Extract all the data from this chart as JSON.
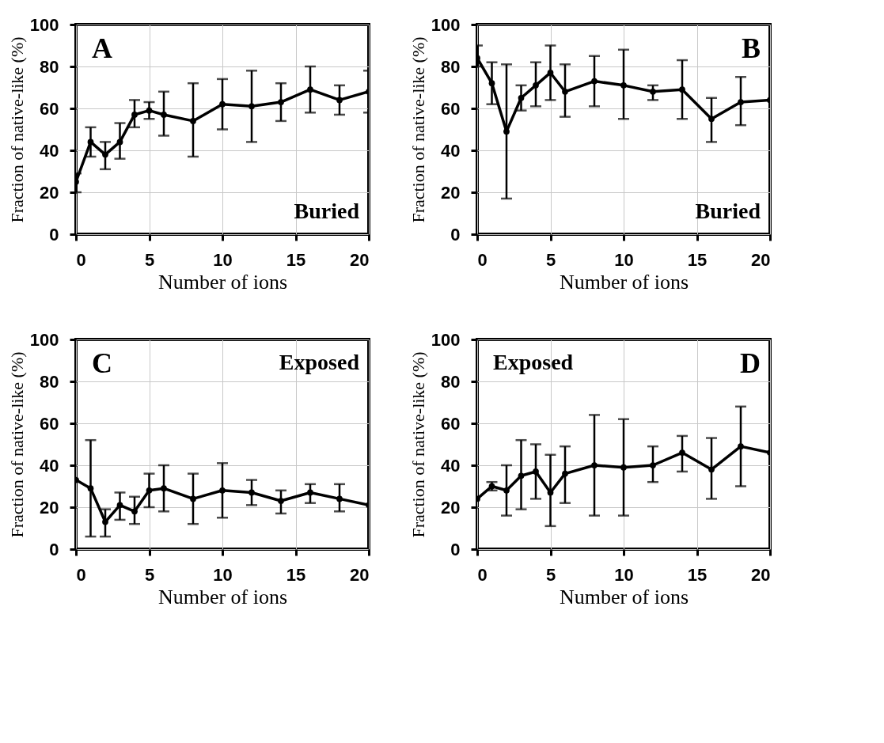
{
  "chart_data": [
    {
      "type": "line",
      "xlabel": "Number of ions",
      "ylabel": "Fraction of native-like (%)",
      "annotations": [
        "A",
        "Buried"
      ],
      "x": [
        0,
        1,
        2,
        3,
        4,
        5,
        6,
        8,
        10,
        12,
        14,
        16,
        18,
        20
      ],
      "xlim": [
        0,
        20
      ],
      "xticks": [
        0,
        5,
        10,
        15,
        20
      ],
      "ylim": [
        0,
        100
      ],
      "yticks": [
        0,
        20,
        40,
        60,
        80,
        100
      ],
      "grid": true,
      "marker": "circle",
      "line_style": "solid",
      "series": [
        {
          "color": "#000000",
          "values": [
            25,
            44,
            38,
            44,
            57,
            59,
            57,
            54,
            62,
            61,
            63,
            69,
            64,
            68
          ],
          "errors": [
            [
              20,
              29
            ],
            [
              37,
              51
            ],
            [
              31,
              44
            ],
            [
              36,
              53
            ],
            [
              51,
              64
            ],
            [
              55,
              63
            ],
            [
              47,
              68
            ],
            [
              37,
              72
            ],
            [
              50,
              74
            ],
            [
              44,
              78
            ],
            [
              54,
              72
            ],
            [
              58,
              80
            ],
            [
              57,
              71
            ],
            [
              58,
              78
            ]
          ]
        }
      ]
    },
    {
      "type": "line",
      "xlabel": "Number of ions",
      "ylabel": "Fraction of native-like (%)",
      "annotations": [
        "B",
        "Buried"
      ],
      "x": [
        0,
        1,
        2,
        3,
        4,
        5,
        6,
        8,
        10,
        12,
        14,
        16,
        18,
        20
      ],
      "xlim": [
        0,
        20
      ],
      "xticks": [
        0,
        5,
        10,
        15,
        20
      ],
      "ylim": [
        0,
        100
      ],
      "yticks": [
        0,
        20,
        40,
        60,
        80,
        100
      ],
      "grid": true,
      "marker": "circle",
      "line_style": "solid",
      "series": [
        {
          "color": "#000000",
          "values": [
            84,
            72,
            49,
            65,
            71,
            77,
            68,
            73,
            71,
            68,
            69,
            55,
            63,
            64
          ],
          "errors": [
            [
              80,
              90
            ],
            [
              62,
              82
            ],
            [
              17,
              81
            ],
            [
              59,
              71
            ],
            [
              61,
              82
            ],
            [
              64,
              90
            ],
            [
              56,
              81
            ],
            [
              61,
              85
            ],
            [
              55,
              88
            ],
            [
              64,
              71
            ],
            [
              55,
              83
            ],
            [
              44,
              65
            ],
            [
              52,
              75
            ],
            null
          ]
        }
      ]
    },
    {
      "type": "line",
      "xlabel": "Number of ions",
      "ylabel": "Fraction of native-like (%)",
      "annotations": [
        "C",
        "Exposed"
      ],
      "x": [
        0,
        1,
        2,
        3,
        4,
        5,
        6,
        8,
        10,
        12,
        14,
        16,
        18,
        20
      ],
      "xlim": [
        0,
        20
      ],
      "xticks": [
        0,
        5,
        10,
        15,
        20
      ],
      "ylim": [
        0,
        100
      ],
      "yticks": [
        0,
        20,
        40,
        60,
        80,
        100
      ],
      "grid": true,
      "marker": "circle",
      "line_style": "solid",
      "series": [
        {
          "color": "#000000",
          "values": [
            33,
            29,
            13,
            21,
            18,
            28,
            29,
            24,
            28,
            27,
            23,
            27,
            24,
            21
          ],
          "errors": [
            null,
            [
              6,
              52
            ],
            [
              6,
              19
            ],
            [
              14,
              27
            ],
            [
              12,
              25
            ],
            [
              20,
              36
            ],
            [
              18,
              40
            ],
            [
              12,
              36
            ],
            [
              15,
              41
            ],
            [
              21,
              33
            ],
            [
              17,
              28
            ],
            [
              22,
              31
            ],
            [
              18,
              31
            ],
            null
          ]
        }
      ]
    },
    {
      "type": "line",
      "xlabel": "Number of ions",
      "ylabel": "Fraction of native-like (%)",
      "annotations": [
        "D",
        "Exposed"
      ],
      "x": [
        0,
        1,
        2,
        3,
        4,
        5,
        6,
        8,
        10,
        12,
        14,
        16,
        18,
        20
      ],
      "xlim": [
        0,
        20
      ],
      "xticks": [
        0,
        5,
        10,
        15,
        20
      ],
      "ylim": [
        0,
        100
      ],
      "yticks": [
        0,
        20,
        40,
        60,
        80,
        100
      ],
      "grid": true,
      "marker": "circle",
      "line_style": "solid",
      "series": [
        {
          "color": "#000000",
          "values": [
            24,
            30,
            28,
            35,
            37,
            27,
            36,
            40,
            39,
            40,
            46,
            38,
            49,
            46
          ],
          "errors": [
            null,
            [
              28,
              32
            ],
            [
              16,
              40
            ],
            [
              19,
              52
            ],
            [
              24,
              50
            ],
            [
              11,
              45
            ],
            [
              22,
              49
            ],
            [
              16,
              64
            ],
            [
              16,
              62
            ],
            [
              32,
              49
            ],
            [
              37,
              54
            ],
            [
              24,
              53
            ],
            [
              30,
              68
            ],
            null
          ]
        }
      ]
    }
  ]
}
